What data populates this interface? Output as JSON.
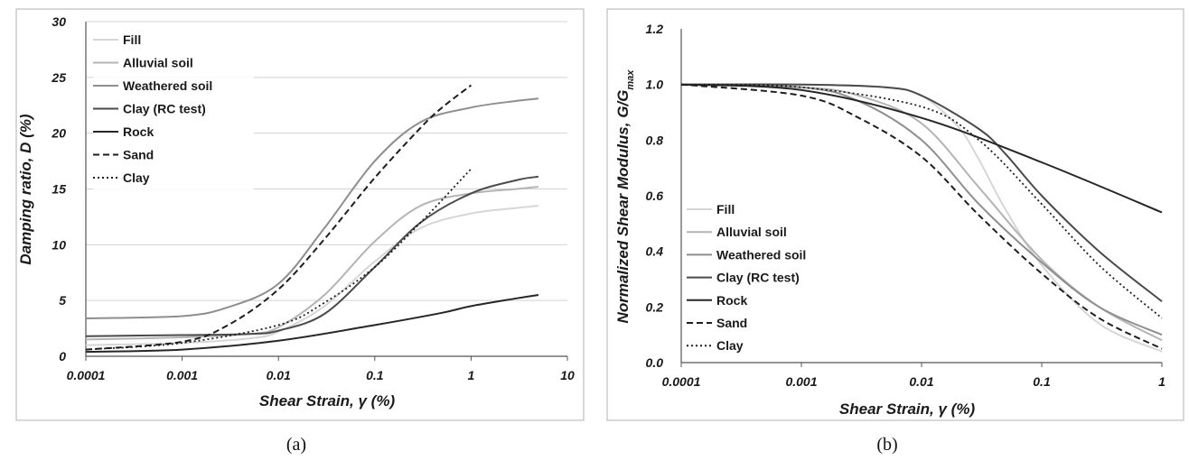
{
  "figure": {
    "panel_labels": [
      "(a)",
      "(b)"
    ]
  },
  "colors": {
    "Fill": "#d6d6d6",
    "Alluvial soil": "#b4b4b4",
    "Weathered soil": "#8e8e8e",
    "Clay (RC test)": "#4a4a4a",
    "Rock": "#262626",
    "Sand": "#1e1e1e",
    "Clay": "#1e1e1e",
    "frame": "#b0b0b0"
  },
  "chart_data": [
    {
      "type": "line",
      "panel": "(a)",
      "title": "",
      "xlabel": "Shear Strain, γ (%)",
      "ylabel": "Damping ratio, D (%)",
      "xscale": "log",
      "xlim": [
        0.0001,
        10
      ],
      "ylim": [
        0,
        30
      ],
      "xticks": [
        "0.0001",
        "0.001",
        "0.01",
        "0.1",
        "1",
        "10"
      ],
      "yticks": [
        "0",
        "5",
        "10",
        "15",
        "20",
        "25",
        "30"
      ],
      "grid": "horizontal",
      "legend_position": "top-left",
      "series": [
        {
          "name": "Fill",
          "style": "solid",
          "x": [
            0.0001,
            0.001,
            0.005,
            0.01,
            0.03,
            0.1,
            0.3,
            1,
            3,
            5
          ],
          "y": [
            1.0,
            1.2,
            1.6,
            2.2,
            4.5,
            8.5,
            11.5,
            12.8,
            13.3,
            13.5
          ]
        },
        {
          "name": "Alluvial soil",
          "style": "solid",
          "x": [
            0.0001,
            0.001,
            0.005,
            0.01,
            0.03,
            0.1,
            0.3,
            1,
            3,
            5
          ],
          "y": [
            1.5,
            1.7,
            2.0,
            2.6,
            5.5,
            10.3,
            13.5,
            14.6,
            15.0,
            15.2
          ]
        },
        {
          "name": "Weathered soil",
          "style": "solid",
          "x": [
            0.0001,
            0.001,
            0.003,
            0.01,
            0.03,
            0.1,
            0.3,
            1,
            3,
            5
          ],
          "y": [
            3.4,
            3.6,
            4.4,
            6.5,
            11.5,
            17.5,
            21.0,
            22.3,
            22.9,
            23.1
          ]
        },
        {
          "name": "Clay (RC test)",
          "style": "solid",
          "x": [
            0.0001,
            0.001,
            0.005,
            0.01,
            0.03,
            0.1,
            0.3,
            1,
            3,
            5
          ],
          "y": [
            1.8,
            1.9,
            2.0,
            2.3,
            3.8,
            8.0,
            12.0,
            14.6,
            15.8,
            16.1
          ]
        },
        {
          "name": "Rock",
          "style": "solid",
          "x": [
            0.0001,
            0.001,
            0.01,
            0.1,
            0.5,
            1,
            3,
            5
          ],
          "y": [
            0.4,
            0.6,
            1.4,
            2.8,
            3.9,
            4.5,
            5.2,
            5.5
          ]
        },
        {
          "name": "Sand",
          "style": "dashed",
          "x": [
            0.0001,
            0.001,
            0.003,
            0.01,
            0.03,
            0.1,
            0.3,
            0.5,
            1
          ],
          "y": [
            0.6,
            1.3,
            2.8,
            6.0,
            10.5,
            16.0,
            20.5,
            22.3,
            24.3
          ]
        },
        {
          "name": "Clay",
          "style": "dotted",
          "x": [
            0.0001,
            0.001,
            0.01,
            0.03,
            0.1,
            0.3,
            1
          ],
          "y": [
            0.6,
            1.2,
            2.8,
            4.8,
            8.0,
            12.0,
            16.8
          ]
        }
      ]
    },
    {
      "type": "line",
      "panel": "(b)",
      "title": "",
      "xlabel": "Shear Strain, γ (%)",
      "ylabel": "Normalized Shear Modulus, G/G",
      "ylabel_sub": "max",
      "xscale": "log",
      "xlim": [
        0.0001,
        1
      ],
      "ylim": [
        0,
        1.2
      ],
      "xticks": [
        "0.0001",
        "0.001",
        "0.01",
        "0.1",
        "1"
      ],
      "yticks": [
        "0.0",
        "0.2",
        "0.4",
        "0.6",
        "0.8",
        "1.0",
        "1.2"
      ],
      "grid": "none",
      "legend_position": "bottom-left",
      "series": [
        {
          "name": "Fill",
          "style": "solid",
          "x": [
            0.0001,
            0.001,
            0.005,
            0.01,
            0.02,
            0.03,
            0.05,
            0.1,
            0.3,
            1
          ],
          "y": [
            1.0,
            1.0,
            0.99,
            0.96,
            0.85,
            0.73,
            0.55,
            0.35,
            0.14,
            0.04
          ]
        },
        {
          "name": "Alluvial soil",
          "style": "solid",
          "x": [
            0.0001,
            0.001,
            0.003,
            0.01,
            0.03,
            0.1,
            0.3,
            1
          ],
          "y": [
            1.0,
            0.99,
            0.96,
            0.86,
            0.63,
            0.37,
            0.2,
            0.08
          ]
        },
        {
          "name": "Weathered soil",
          "style": "solid",
          "x": [
            0.0001,
            0.001,
            0.003,
            0.01,
            0.03,
            0.1,
            0.3,
            1
          ],
          "y": [
            1.0,
            0.99,
            0.94,
            0.8,
            0.57,
            0.36,
            0.2,
            0.1
          ]
        },
        {
          "name": "Clay (RC test)",
          "style": "solid",
          "x": [
            0.0001,
            0.001,
            0.005,
            0.01,
            0.03,
            0.05,
            0.1,
            0.3,
            1
          ],
          "y": [
            1.0,
            1.0,
            0.99,
            0.96,
            0.84,
            0.75,
            0.6,
            0.4,
            0.22
          ]
        },
        {
          "name": "Rock",
          "style": "solid",
          "x": [
            0.0001,
            0.001,
            0.01,
            0.1,
            1
          ],
          "y": [
            1.0,
            0.98,
            0.88,
            0.72,
            0.54
          ]
        },
        {
          "name": "Sand",
          "style": "dashed",
          "x": [
            0.0001,
            0.001,
            0.003,
            0.01,
            0.03,
            0.1,
            0.3,
            1
          ],
          "y": [
            1.0,
            0.96,
            0.88,
            0.74,
            0.53,
            0.32,
            0.16,
            0.05
          ]
        },
        {
          "name": "Clay",
          "style": "dotted",
          "x": [
            0.0001,
            0.001,
            0.01,
            0.03,
            0.1,
            0.3,
            1
          ],
          "y": [
            1.0,
            0.99,
            0.92,
            0.8,
            0.57,
            0.35,
            0.16
          ]
        }
      ]
    }
  ]
}
